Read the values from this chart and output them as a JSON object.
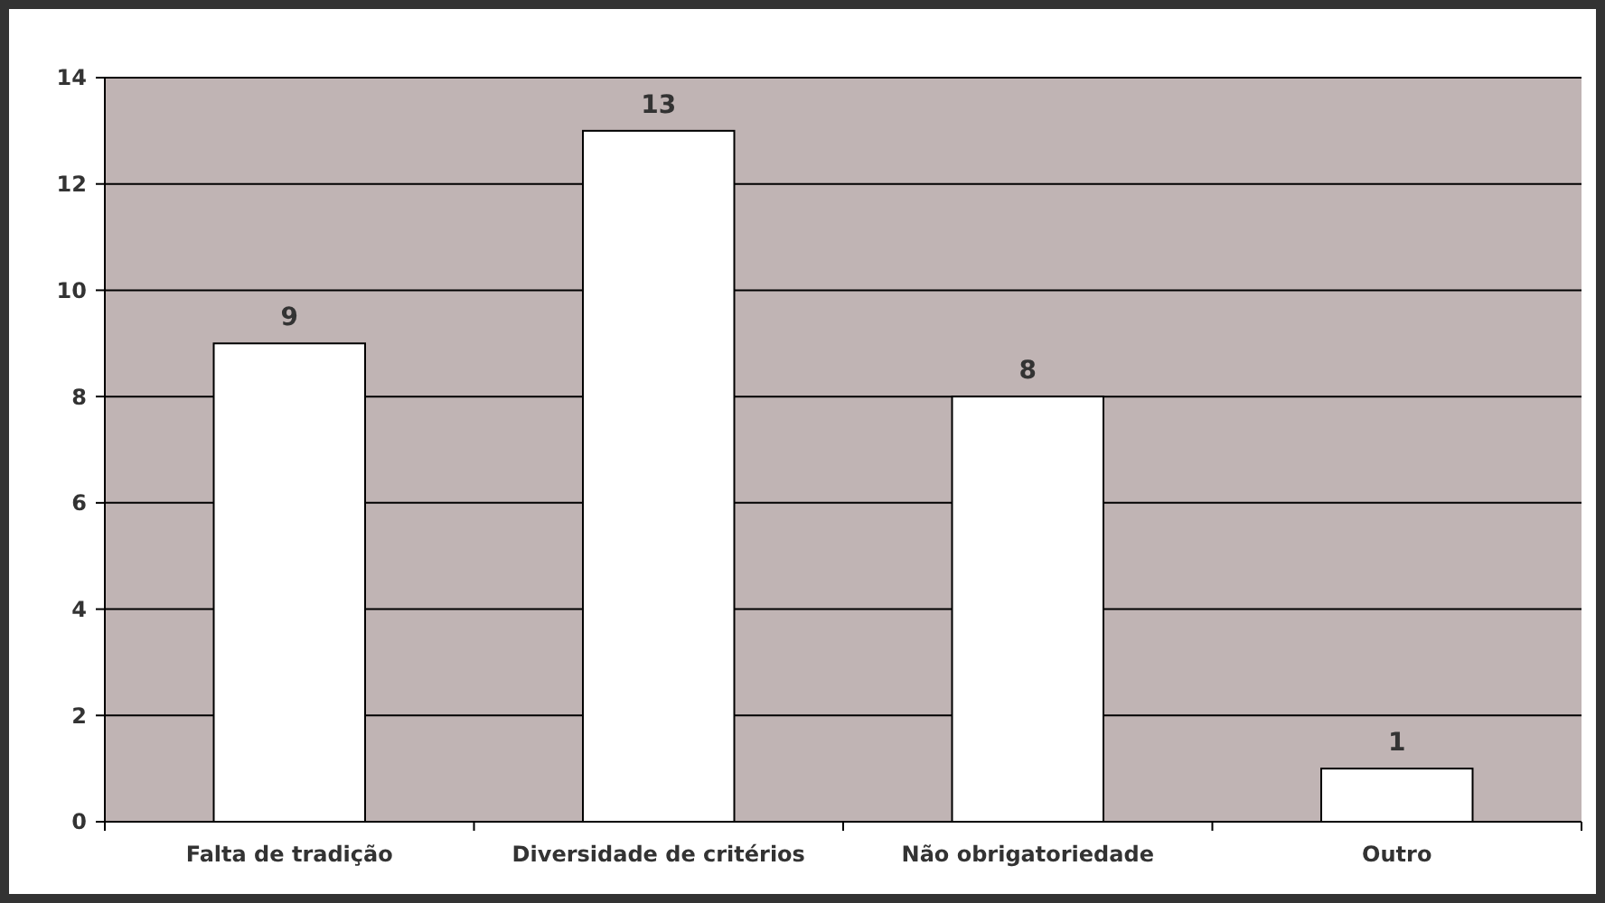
{
  "chart_data": {
    "type": "bar",
    "categories": [
      "Falta de tradição",
      "Diversidade de critérios",
      "Não obrigatoriedade",
      "Outro"
    ],
    "values": [
      9,
      13,
      8,
      1
    ],
    "color": "#ffffff",
    "ylim": [
      0,
      14
    ],
    "yticks": [
      0,
      2,
      4,
      6,
      8,
      10,
      12,
      14
    ],
    "grid": "y",
    "data_labels": true
  }
}
